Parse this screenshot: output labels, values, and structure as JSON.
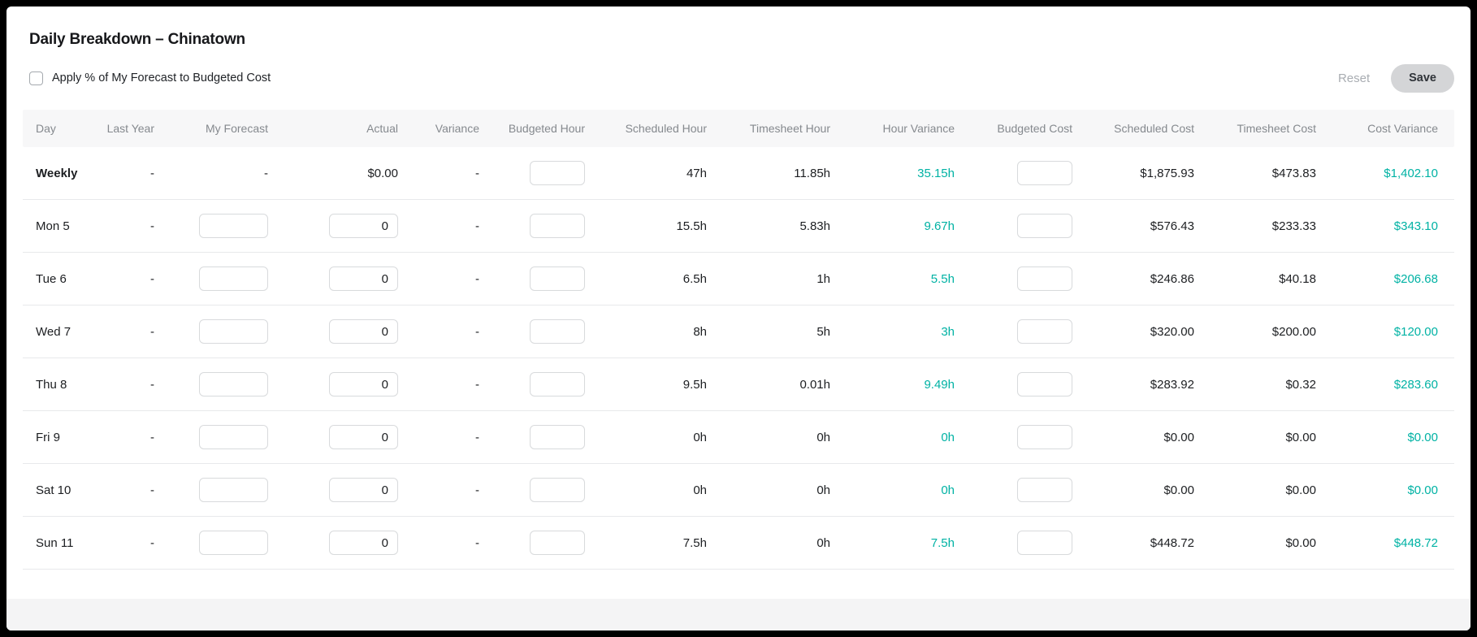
{
  "title": "Daily Breakdown – Chinatown",
  "checkbox": {
    "label": "Apply % of My Forecast to Budgeted Cost",
    "checked": false
  },
  "actions": {
    "reset_label": "Reset",
    "save_label": "Save"
  },
  "colors": {
    "variance_positive": "#00b2a4",
    "header_bg": "#f7f7f8",
    "save_button_bg": "#d4d5d7"
  },
  "table": {
    "headers": [
      "Day",
      "Last Year",
      "My Forecast",
      "Actual",
      "Variance",
      "Budgeted Hour",
      "Scheduled Hour",
      "Timesheet Hour",
      "Hour Variance",
      "Budgeted Cost",
      "Scheduled Cost",
      "Timesheet Cost",
      "Cost Variance"
    ],
    "weekly_row": {
      "day": "Weekly",
      "last_year": "-",
      "my_forecast": "-",
      "actual": "$0.00",
      "variance": "-",
      "budgeted_hour_value": "",
      "scheduled_hour": "47h",
      "timesheet_hour": "11.85h",
      "hour_variance": "35.15h",
      "budgeted_cost_value": "",
      "scheduled_cost": "$1,875.93",
      "timesheet_cost": "$473.83",
      "cost_variance": "$1,402.10"
    },
    "day_rows": [
      {
        "day": "Mon 5",
        "last_year": "-",
        "my_forecast_value": "",
        "actual_value": "0",
        "variance": "-",
        "budgeted_hour_value": "",
        "scheduled_hour": "15.5h",
        "timesheet_hour": "5.83h",
        "hour_variance": "9.67h",
        "budgeted_cost_value": "",
        "scheduled_cost": "$576.43",
        "timesheet_cost": "$233.33",
        "cost_variance": "$343.10"
      },
      {
        "day": "Tue 6",
        "last_year": "-",
        "my_forecast_value": "",
        "actual_value": "0",
        "variance": "-",
        "budgeted_hour_value": "",
        "scheduled_hour": "6.5h",
        "timesheet_hour": "1h",
        "hour_variance": "5.5h",
        "budgeted_cost_value": "",
        "scheduled_cost": "$246.86",
        "timesheet_cost": "$40.18",
        "cost_variance": "$206.68"
      },
      {
        "day": "Wed 7",
        "last_year": "-",
        "my_forecast_value": "",
        "actual_value": "0",
        "variance": "-",
        "budgeted_hour_value": "",
        "scheduled_hour": "8h",
        "timesheet_hour": "5h",
        "hour_variance": "3h",
        "budgeted_cost_value": "",
        "scheduled_cost": "$320.00",
        "timesheet_cost": "$200.00",
        "cost_variance": "$120.00"
      },
      {
        "day": "Thu 8",
        "last_year": "-",
        "my_forecast_value": "",
        "actual_value": "0",
        "variance": "-",
        "budgeted_hour_value": "",
        "scheduled_hour": "9.5h",
        "timesheet_hour": "0.01h",
        "hour_variance": "9.49h",
        "budgeted_cost_value": "",
        "scheduled_cost": "$283.92",
        "timesheet_cost": "$0.32",
        "cost_variance": "$283.60"
      },
      {
        "day": "Fri 9",
        "last_year": "-",
        "my_forecast_value": "",
        "actual_value": "0",
        "variance": "-",
        "budgeted_hour_value": "",
        "scheduled_hour": "0h",
        "timesheet_hour": "0h",
        "hour_variance": "0h",
        "budgeted_cost_value": "",
        "scheduled_cost": "$0.00",
        "timesheet_cost": "$0.00",
        "cost_variance": "$0.00"
      },
      {
        "day": "Sat 10",
        "last_year": "-",
        "my_forecast_value": "",
        "actual_value": "0",
        "variance": "-",
        "budgeted_hour_value": "",
        "scheduled_hour": "0h",
        "timesheet_hour": "0h",
        "hour_variance": "0h",
        "budgeted_cost_value": "",
        "scheduled_cost": "$0.00",
        "timesheet_cost": "$0.00",
        "cost_variance": "$0.00"
      },
      {
        "day": "Sun 11",
        "last_year": "-",
        "my_forecast_value": "",
        "actual_value": "0",
        "variance": "-",
        "budgeted_hour_value": "",
        "scheduled_hour": "7.5h",
        "timesheet_hour": "0h",
        "hour_variance": "7.5h",
        "budgeted_cost_value": "",
        "scheduled_cost": "$448.72",
        "timesheet_cost": "$0.00",
        "cost_variance": "$448.72"
      }
    ]
  }
}
